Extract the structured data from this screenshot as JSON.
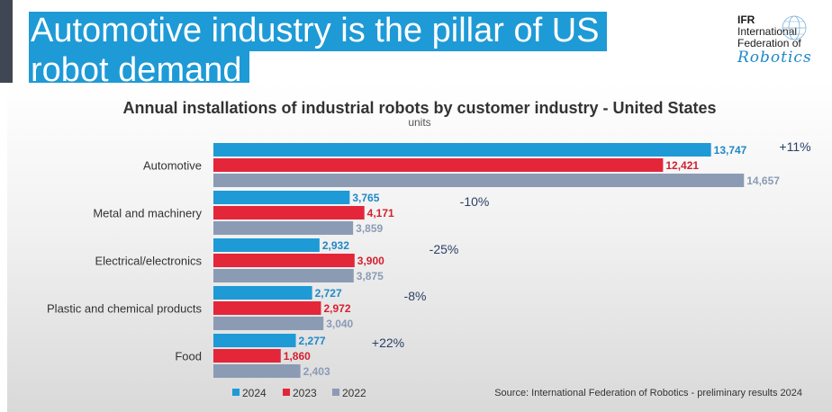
{
  "header": {
    "title": "Automotive industry is the pillar of US robot demand",
    "title_line1": "Automotive industry is the pillar of US",
    "title_line2": "robot demand",
    "accent_color": "#1e9ad6"
  },
  "logo": {
    "abbr": "IFR",
    "line2": "International",
    "line3": "Federation of",
    "line4": "Robotics"
  },
  "chart_data": {
    "type": "bar",
    "orientation": "horizontal",
    "title": "Annual installations of industrial robots by customer industry - United States",
    "subtitle": "units",
    "categories": [
      "Automotive",
      "Metal and machinery",
      "Electrical/electronics",
      "Plastic and chemical products",
      "Food"
    ],
    "series": [
      {
        "name": "2024",
        "color": "#1e9ad6",
        "values": [
          13747,
          3765,
          2932,
          2727,
          2277
        ],
        "labels": [
          "13,747",
          "3,765",
          "2,932",
          "2,727",
          "2,277"
        ]
      },
      {
        "name": "2023",
        "color": "#e3263a",
        "values": [
          12421,
          4171,
          3900,
          2972,
          1860
        ],
        "labels": [
          "12,421",
          "4,171",
          "3,900",
          "2,972",
          "1,860"
        ]
      },
      {
        "name": "2022",
        "color": "#8b9bb4",
        "values": [
          14657,
          3859,
          3875,
          3040,
          2403
        ],
        "labels": [
          "14,657",
          "3,859",
          "3,875",
          "3,040",
          "2,403"
        ]
      }
    ],
    "annotations": [
      "+11%",
      "-10%",
      "-25%",
      "-8%",
      "+22%"
    ],
    "legend_position": "bottom-left",
    "source": "Source: International Federation of Robotics - preliminary results 2024",
    "xlim": [
      0,
      14800
    ]
  }
}
